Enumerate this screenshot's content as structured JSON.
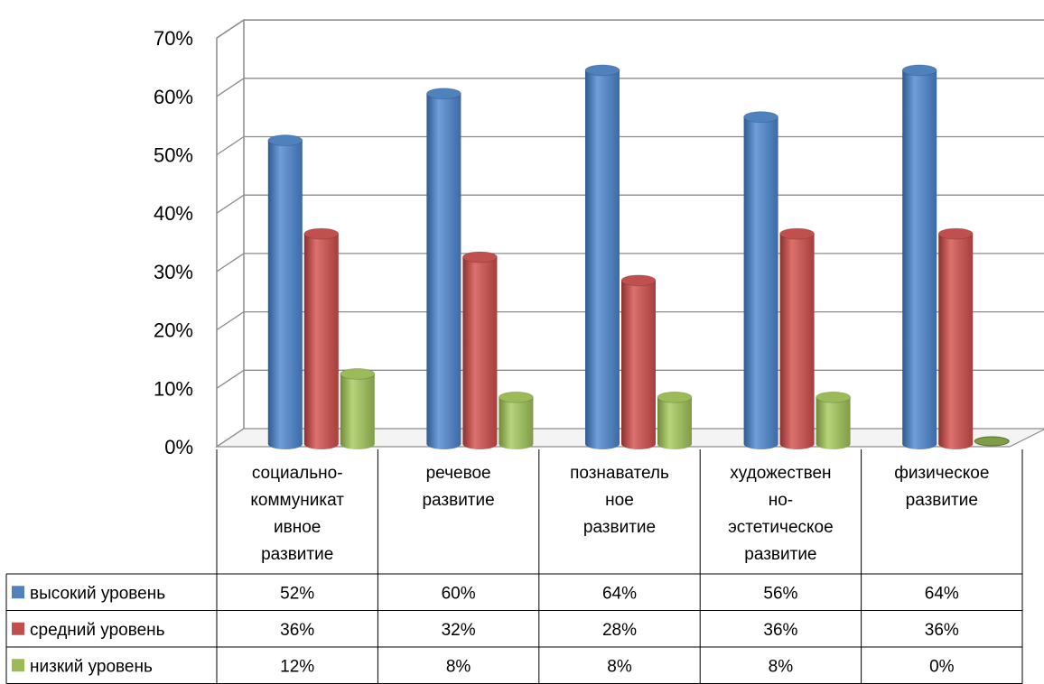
{
  "chart_data": {
    "type": "bar",
    "categories": [
      [
        "социально-",
        "коммуникат",
        "ивное",
        "развитие"
      ],
      [
        "речевое",
        "развитие"
      ],
      [
        "познаватель",
        "ное",
        "развитие"
      ],
      [
        "художествен",
        "но-",
        "эстетическое",
        "развитие"
      ],
      [
        "физическое",
        "развитие"
      ]
    ],
    "series": [
      {
        "name": "высокий уровень",
        "color": "#4F81BD",
        "values": [
          52,
          60,
          64,
          56,
          64
        ],
        "labels": [
          "52%",
          "60%",
          "64%",
          "56%",
          "64%"
        ]
      },
      {
        "name": "средний уровень",
        "color": "#C0504D",
        "values": [
          36,
          32,
          28,
          36,
          36
        ],
        "labels": [
          "36%",
          "32%",
          "28%",
          "36%",
          "36%"
        ]
      },
      {
        "name": "низкий уровень",
        "color": "#9BBB59",
        "values": [
          12,
          8,
          8,
          8,
          0
        ],
        "labels": [
          "12%",
          "8%",
          "8%",
          "8%",
          "0%"
        ]
      }
    ],
    "y_ticks": [
      "0%",
      "10%",
      "20%",
      "30%",
      "40%",
      "50%",
      "60%",
      "70%"
    ],
    "ylim": [
      0,
      70
    ],
    "grid": true,
    "legend": "data-table"
  }
}
